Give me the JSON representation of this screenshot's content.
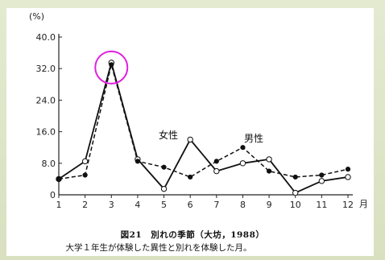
{
  "chart_data": {
    "type": "line",
    "ylabel": "(%)",
    "xunit": "月",
    "x": [
      1,
      2,
      3,
      4,
      5,
      6,
      7,
      8,
      9,
      10,
      11,
      12
    ],
    "ylim": [
      0,
      40
    ],
    "yticks": [
      0,
      8.0,
      16.0,
      24.0,
      32.0,
      40.0
    ],
    "ytick_labels": [
      "0",
      "8.0",
      "16.0",
      "24.0",
      "32.0",
      "40.0"
    ],
    "series": [
      {
        "name": "女性",
        "style": "solid",
        "marker": "open-circle",
        "values": [
          4.0,
          8.5,
          33.5,
          9.0,
          1.5,
          14.0,
          6.0,
          8.0,
          9.0,
          0.5,
          3.5,
          4.5
        ]
      },
      {
        "name": "男性",
        "style": "dashed",
        "marker": "filled-circle",
        "values": [
          4.0,
          5.0,
          33.0,
          8.5,
          7.0,
          4.5,
          8.5,
          12.0,
          6.0,
          4.5,
          5.0,
          6.5
        ]
      }
    ],
    "annotation": {
      "type": "circle",
      "color": "#e020e0",
      "target_x": 3,
      "target_y": 33.5
    },
    "caption_title": "図21　別れの季節（大坊，1988）",
    "caption_sub": "大学１年生が体験した異性と別れを体験した月。"
  }
}
